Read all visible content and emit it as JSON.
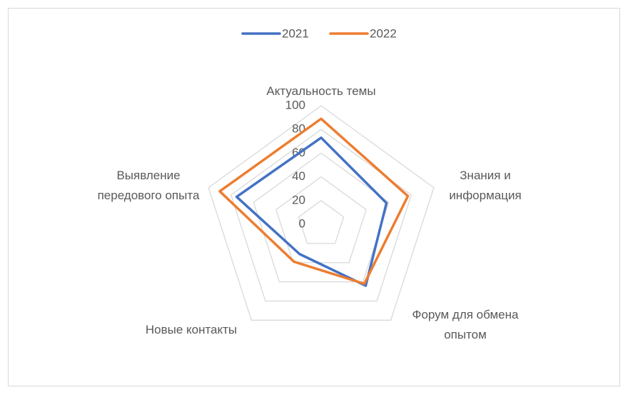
{
  "chart_data": {
    "type": "radar",
    "categories": [
      "Актуальность темы",
      "Знания и\nинформация",
      "Форум для обмена\nопытом",
      "Новые контакты",
      "Выявление\nпередового опыта"
    ],
    "series": [
      {
        "name": "2021",
        "color": "#4472c4",
        "values": [
          73,
          58,
          64,
          31,
          75
        ]
      },
      {
        "name": "2022",
        "color": "#ed7d31",
        "values": [
          89,
          77,
          62,
          39,
          90
        ]
      }
    ],
    "ylim": [
      0,
      100
    ],
    "yticks": [
      0,
      20,
      40,
      60,
      80,
      100
    ],
    "grid": true,
    "legend": "top"
  }
}
